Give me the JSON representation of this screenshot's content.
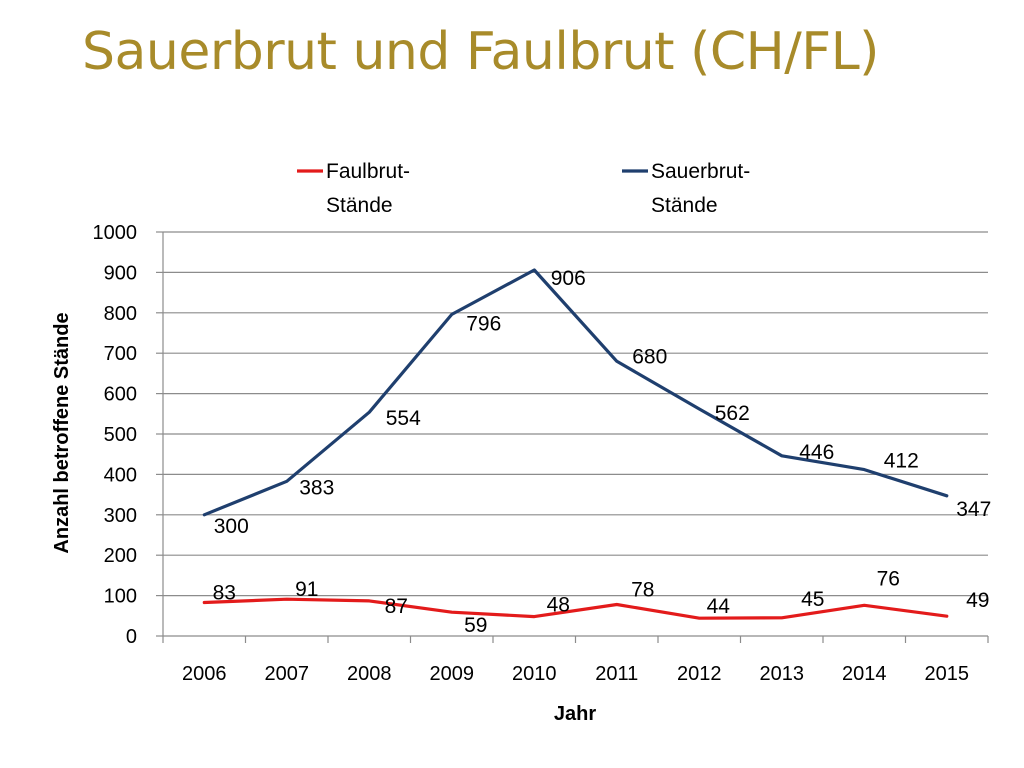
{
  "slide": {
    "title": "Sauerbrut und Faulbrut (CH/FL)"
  },
  "chart_data": {
    "type": "line",
    "title": "",
    "xlabel": "Jahr",
    "ylabel": "Anzahl betroffene Stände",
    "categories": [
      "2006",
      "2007",
      "2008",
      "2009",
      "2010",
      "2011",
      "2012",
      "2013",
      "2014",
      "2015"
    ],
    "ylim": [
      0,
      1000
    ],
    "yticks": [
      0,
      100,
      200,
      300,
      400,
      500,
      600,
      700,
      800,
      900,
      1000
    ],
    "grid": true,
    "legend_position": "top",
    "series": [
      {
        "name": "Faulbrut-Stände",
        "legend_lines": [
          "Faulbrut-",
          "Stände"
        ],
        "color": "#e31b1b",
        "values": [
          83,
          91,
          87,
          59,
          48,
          78,
          44,
          45,
          76,
          49
        ]
      },
      {
        "name": "Sauerbrut-Stände",
        "legend_lines": [
          "Sauerbrut-",
          "Stände"
        ],
        "color": "#1f3f6e",
        "values": [
          300,
          383,
          554,
          796,
          906,
          680,
          562,
          446,
          412,
          347
        ]
      }
    ]
  }
}
